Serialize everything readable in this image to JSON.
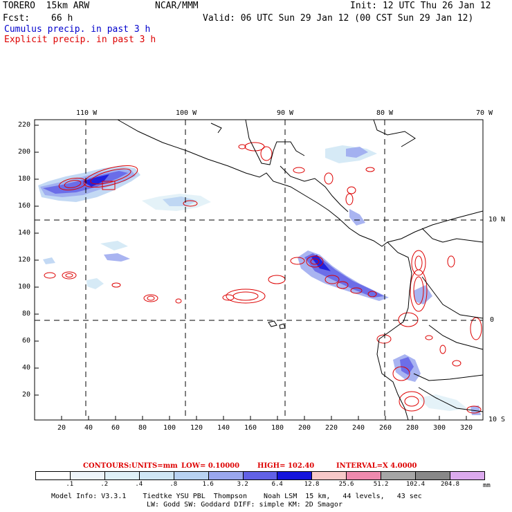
{
  "header": {
    "model": "TORERO  15km ARW",
    "center": "NCAR/MMM",
    "init": "Init: 12 UTC Thu 26 Jan 12",
    "fcst_label": "Fcst:",
    "fcst_value": "66 h",
    "valid": "Valid: 06 UTC Sun 29 Jan 12 (00 CST Sun 29 Jan 12)",
    "line_cumulus": "Cumulus precip. in past 3 h",
    "line_explicit": "Explicit precip. in past 3 h"
  },
  "map": {
    "top_lon_labels": [
      "110 W",
      "100 W",
      "90 W",
      "80 W",
      "70 W"
    ],
    "right_lat_labels": [
      "10 N",
      "0",
      "10 S"
    ],
    "y_grid_labels": [
      "220",
      "200",
      "180",
      "160",
      "140",
      "120",
      "100",
      "80",
      "60",
      "40",
      "20"
    ],
    "x_grid_labels": [
      "20",
      "40",
      "60",
      "80",
      "100",
      "120",
      "140",
      "160",
      "180",
      "200",
      "220",
      "240",
      "260",
      "280",
      "300",
      "320"
    ]
  },
  "contour_info": {
    "contours": "CONTOURS:",
    "units": "UNITS=mm",
    "low": "LOW= 0.10000",
    "high": "HIGH= 102.40",
    "interval": "INTERVAL=X 4.0000"
  },
  "colorbar": {
    "labels": [
      ".1",
      ".2",
      ".4",
      ".8",
      "1.6",
      "3.2",
      "6.4",
      "12.8",
      "25.6",
      "51.2",
      "102.4",
      "204.8"
    ],
    "unit": "mm",
    "colors": [
      "#ffffff",
      "#eef5fa",
      "#dff0f7",
      "#cfe6f5",
      "#b8d2f2",
      "#9aa7ee",
      "#6161e6",
      "#1414dc",
      "#f7c8c8",
      "#ef8aae",
      "#a6a6a6",
      "#888888",
      "#dcaaee"
    ]
  },
  "footer": {
    "line1": "Model Info: V3.3.1    Tiedtke YSU PBL  Thompson    Noah LSM  15 km,   44 levels,   43 sec",
    "line2": "LW: Godd SW: Goddard DIFF: simple KM: 2D Smagor"
  }
}
